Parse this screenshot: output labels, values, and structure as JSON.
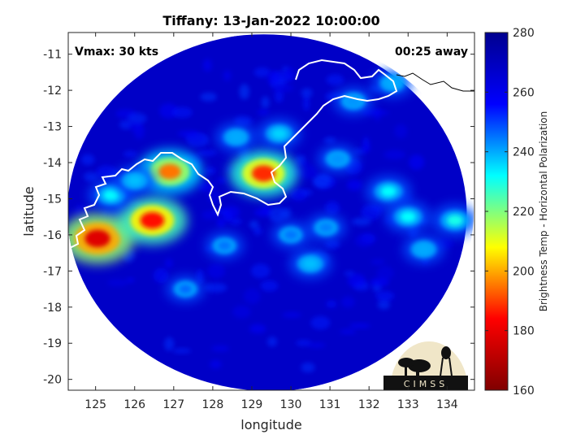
{
  "chart_data": {
    "type": "heatmap",
    "title": "Tiffany: 13-Jan-2022 10:00:00",
    "xlabel": "longitude",
    "ylabel": "latitude",
    "xlim": [
      124.3,
      134.7
    ],
    "ylim": [
      -20.3,
      -10.4
    ],
    "xticks": [
      "125",
      "126",
      "127",
      "128",
      "129",
      "130",
      "131",
      "132",
      "133",
      "134"
    ],
    "yticks": [
      "-11",
      "-12",
      "-13",
      "-14",
      "-15",
      "-16",
      "-17",
      "-18",
      "-19",
      "-20"
    ],
    "annotations": {
      "vmax": "Vmax: 30 kts",
      "away": "00:25 away"
    },
    "colorbar": {
      "label": "Brightness Temp - Horizontal Polarization",
      "min": 160,
      "max": 280,
      "ticks": [
        "280",
        "260",
        "240",
        "220",
        "200",
        "180",
        "160"
      ],
      "colormap": [
        "#00008f",
        "#0000ff",
        "#00ffff",
        "#ffff00",
        "#ff0000",
        "#800000"
      ]
    },
    "swath": {
      "center_lon": 129.3,
      "center_lat": -15.4,
      "radius_deg": 4.9
    },
    "background_value": 268,
    "features": [
      {
        "lon": 125.05,
        "lat": -16.1,
        "value": 178
      },
      {
        "lon": 126.45,
        "lat": -15.6,
        "value": 185
      },
      {
        "lon": 126.9,
        "lat": -14.25,
        "value": 195
      },
      {
        "lon": 129.3,
        "lat": -14.3,
        "value": 188
      },
      {
        "lon": 125.4,
        "lat": -14.9,
        "value": 232
      },
      {
        "lon": 126.0,
        "lat": -14.5,
        "value": 238
      },
      {
        "lon": 128.6,
        "lat": -13.3,
        "value": 240
      },
      {
        "lon": 129.7,
        "lat": -13.2,
        "value": 236
      },
      {
        "lon": 131.6,
        "lat": -12.3,
        "value": 242
      },
      {
        "lon": 132.5,
        "lat": -14.8,
        "value": 232
      },
      {
        "lon": 133.0,
        "lat": -15.5,
        "value": 232
      },
      {
        "lon": 134.2,
        "lat": -15.6,
        "value": 230
      },
      {
        "lon": 130.5,
        "lat": -16.8,
        "value": 238
      },
      {
        "lon": 130.0,
        "lat": -16.0,
        "value": 245
      },
      {
        "lon": 131.2,
        "lat": -13.9,
        "value": 242
      },
      {
        "lon": 128.3,
        "lat": -16.3,
        "value": 245
      },
      {
        "lon": 130.9,
        "lat": -15.8,
        "value": 244
      },
      {
        "lon": 127.3,
        "lat": -17.5,
        "value": 246
      },
      {
        "lon": 132.6,
        "lat": -11.8,
        "value": 240
      },
      {
        "lon": 133.4,
        "lat": -16.4,
        "value": 240
      }
    ],
    "logo_text": "CIMSS"
  }
}
